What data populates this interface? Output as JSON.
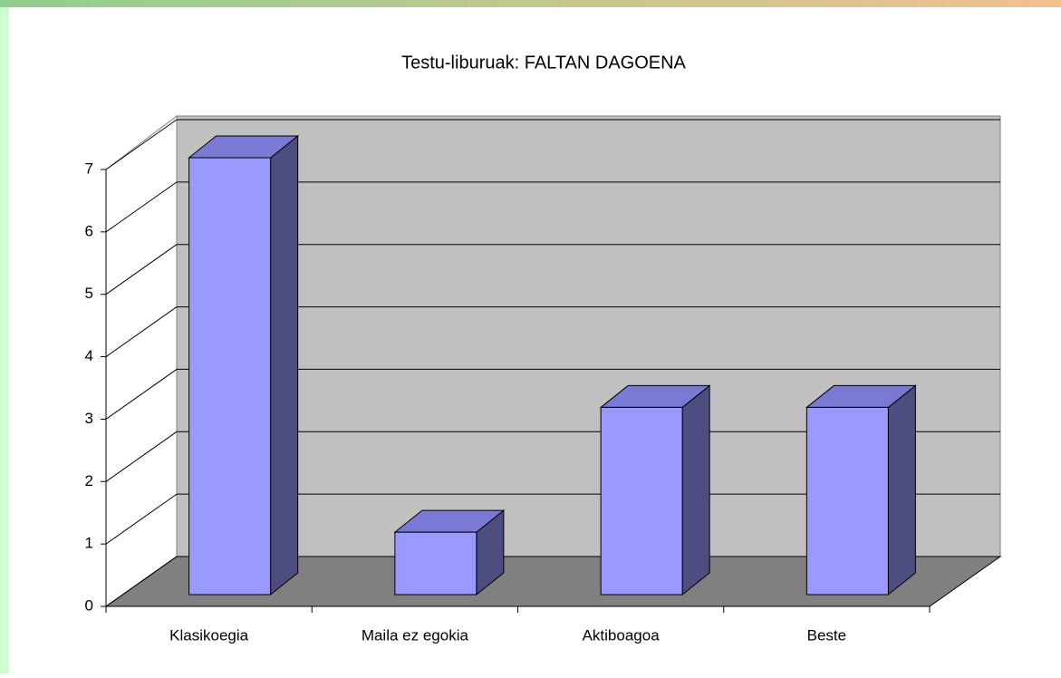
{
  "chart_data": {
    "type": "bar3d",
    "title": "Testu-liburuak: FALTAN DAGOENA",
    "categories": [
      "Klasikoegia",
      "Maila ez egokia",
      "Aktiboagoa",
      "Beste"
    ],
    "values": [
      7,
      1,
      3,
      3
    ],
    "color": "#9999ff",
    "top_color": "#7a7ad6",
    "side_color": "#4d4d80",
    "wall_color": "#c0c0c0",
    "floor_color": "#808080",
    "ylim": [
      0,
      7
    ],
    "yticks": [
      0,
      1,
      2,
      3,
      4,
      5,
      6,
      7
    ],
    "grid": true
  }
}
